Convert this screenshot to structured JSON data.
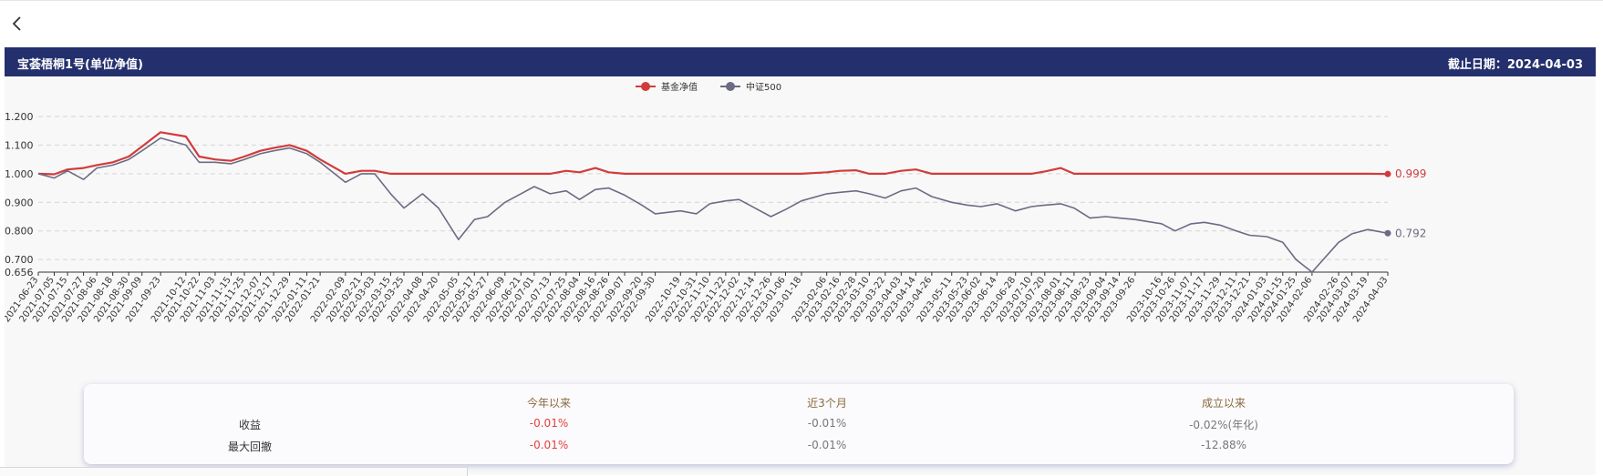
{
  "header": {
    "title": "宝荟梧桐1号(单位净值)",
    "date_label": "截止日期：2024-04-03"
  },
  "colors": {
    "header_bg": "#24306d",
    "fund": "#d23b3b",
    "index": "#6b6b85",
    "negative": "#e2403c",
    "header_text": "#8b6a3d"
  },
  "icons": {
    "back": "chevron-left-icon"
  },
  "chart_data": {
    "type": "line",
    "legend": {
      "position": "top-center",
      "items": [
        "基金净值",
        "中证500"
      ]
    },
    "grid": true,
    "ylim": [
      0.656,
      1.2
    ],
    "y_ticks": [
      "1.200",
      "1.100",
      "1.000",
      "0.900",
      "0.800",
      "0.700",
      "0.656"
    ],
    "x_ticks": [
      "2021-06-23",
      "2021-07-05",
      "2021-07-15",
      "2021-07-27",
      "2021-08-06",
      "2021-08-18",
      "2021-08-30",
      "2021-09-09",
      "2021-09-23",
      "2021-10-12",
      "2021-10-22",
      "2021-11-03",
      "2021-11-15",
      "2021-11-25",
      "2021-12-07",
      "2021-12-17",
      "2021-12-29",
      "2022-01-11",
      "2022-01-21",
      "2022-02-09",
      "2022-02-21",
      "2022-03-03",
      "2022-03-15",
      "2022-03-25",
      "2022-04-08",
      "2022-04-20",
      "2022-05-05",
      "2022-05-17",
      "2022-05-27",
      "2022-06-09",
      "2022-06-21",
      "2022-07-01",
      "2022-07-13",
      "2022-07-25",
      "2022-08-04",
      "2022-08-16",
      "2022-08-26",
      "2022-09-07",
      "2022-09-20",
      "2022-09-30",
      "2022-10-19",
      "2022-10-31",
      "2022-11-10",
      "2022-11-22",
      "2022-12-02",
      "2022-12-14",
      "2022-12-26",
      "2023-01-06",
      "2023-01-18",
      "2023-02-06",
      "2023-02-16",
      "2023-02-28",
      "2023-03-10",
      "2023-03-22",
      "2023-04-03",
      "2023-04-14",
      "2023-04-26",
      "2023-05-11",
      "2023-05-23",
      "2023-06-02",
      "2023-06-14",
      "2023-06-28",
      "2023-07-10",
      "2023-07-20",
      "2023-08-01",
      "2023-08-11",
      "2023-08-23",
      "2023-09-04",
      "2023-09-14",
      "2023-09-26",
      "2023-10-16",
      "2023-10-26",
      "2023-11-07",
      "2023-11-17",
      "2023-11-29",
      "2023-12-11",
      "2023-12-21",
      "2024-01-03",
      "2024-01-15",
      "2024-01-25",
      "2024-02-06",
      "2024-02-26",
      "2024-03-07",
      "2024-03-19",
      "2024-04-03"
    ],
    "series": [
      {
        "name": "基金净值",
        "end_label": "0.999",
        "points": [
          [
            "2021-06-23",
            1.0
          ],
          [
            "2021-07-05",
            0.998
          ],
          [
            "2021-07-15",
            1.015
          ],
          [
            "2021-07-27",
            1.02
          ],
          [
            "2021-08-06",
            1.03
          ],
          [
            "2021-08-18",
            1.04
          ],
          [
            "2021-08-30",
            1.06
          ],
          [
            "2021-09-09",
            1.095
          ],
          [
            "2021-09-23",
            1.145
          ],
          [
            "2021-10-12",
            1.13
          ],
          [
            "2021-10-22",
            1.06
          ],
          [
            "2021-11-03",
            1.05
          ],
          [
            "2021-11-15",
            1.045
          ],
          [
            "2021-11-25",
            1.06
          ],
          [
            "2021-12-07",
            1.08
          ],
          [
            "2021-12-17",
            1.09
          ],
          [
            "2021-12-29",
            1.1
          ],
          [
            "2022-01-11",
            1.08
          ],
          [
            "2022-01-21",
            1.05
          ],
          [
            "2022-02-09",
            1.0
          ],
          [
            "2022-02-21",
            1.01
          ],
          [
            "2022-03-03",
            1.01
          ],
          [
            "2022-03-15",
            1.0
          ],
          [
            "2022-03-25",
            1.0
          ],
          [
            "2022-04-08",
            1.0
          ],
          [
            "2022-04-20",
            1.0
          ],
          [
            "2022-05-05",
            1.0
          ],
          [
            "2022-05-17",
            1.0
          ],
          [
            "2022-05-27",
            1.0
          ],
          [
            "2022-06-09",
            1.0
          ],
          [
            "2022-06-21",
            1.0
          ],
          [
            "2022-07-01",
            1.0
          ],
          [
            "2022-07-13",
            1.0
          ],
          [
            "2022-07-25",
            1.01
          ],
          [
            "2022-08-04",
            1.005
          ],
          [
            "2022-08-16",
            1.02
          ],
          [
            "2022-08-26",
            1.005
          ],
          [
            "2022-09-07",
            1.0
          ],
          [
            "2022-09-20",
            1.0
          ],
          [
            "2022-09-30",
            1.0
          ],
          [
            "2022-10-19",
            1.0
          ],
          [
            "2022-10-31",
            1.0
          ],
          [
            "2022-11-10",
            1.0
          ],
          [
            "2022-11-22",
            1.0
          ],
          [
            "2022-12-02",
            1.0
          ],
          [
            "2022-12-14",
            1.0
          ],
          [
            "2022-12-26",
            1.0
          ],
          [
            "2023-01-06",
            1.0
          ],
          [
            "2023-01-18",
            1.0
          ],
          [
            "2023-02-06",
            1.005
          ],
          [
            "2023-02-16",
            1.01
          ],
          [
            "2023-02-28",
            1.012
          ],
          [
            "2023-03-10",
            1.0
          ],
          [
            "2023-03-22",
            1.0
          ],
          [
            "2023-04-03",
            1.01
          ],
          [
            "2023-04-14",
            1.015
          ],
          [
            "2023-04-26",
            1.0
          ],
          [
            "2023-05-11",
            1.0
          ],
          [
            "2023-05-23",
            1.0
          ],
          [
            "2023-06-02",
            1.0
          ],
          [
            "2023-06-14",
            1.0
          ],
          [
            "2023-06-28",
            1.0
          ],
          [
            "2023-07-10",
            1.0
          ],
          [
            "2023-07-20",
            1.008
          ],
          [
            "2023-08-01",
            1.02
          ],
          [
            "2023-08-11",
            1.0
          ],
          [
            "2023-08-23",
            1.0
          ],
          [
            "2023-09-04",
            1.0
          ],
          [
            "2023-09-14",
            1.0
          ],
          [
            "2023-09-26",
            1.0
          ],
          [
            "2023-10-16",
            1.0
          ],
          [
            "2023-10-26",
            1.0
          ],
          [
            "2023-11-07",
            1.0
          ],
          [
            "2023-11-17",
            1.0
          ],
          [
            "2023-11-29",
            1.0
          ],
          [
            "2023-12-11",
            1.0
          ],
          [
            "2023-12-21",
            1.0
          ],
          [
            "2024-01-03",
            1.0
          ],
          [
            "2024-01-15",
            1.0
          ],
          [
            "2024-01-25",
            1.0
          ],
          [
            "2024-02-06",
            1.0
          ],
          [
            "2024-02-26",
            1.0
          ],
          [
            "2024-03-07",
            1.0
          ],
          [
            "2024-03-19",
            1.0
          ],
          [
            "2024-04-03",
            0.999
          ]
        ]
      },
      {
        "name": "中证500",
        "end_label": "0.792",
        "points": [
          [
            "2021-06-23",
            1.0
          ],
          [
            "2021-07-05",
            0.985
          ],
          [
            "2021-07-15",
            1.01
          ],
          [
            "2021-07-27",
            0.98
          ],
          [
            "2021-08-06",
            1.02
          ],
          [
            "2021-08-18",
            1.03
          ],
          [
            "2021-08-30",
            1.05
          ],
          [
            "2021-09-09",
            1.08
          ],
          [
            "2021-09-23",
            1.125
          ],
          [
            "2021-10-12",
            1.1
          ],
          [
            "2021-10-22",
            1.04
          ],
          [
            "2021-11-03",
            1.04
          ],
          [
            "2021-11-15",
            1.035
          ],
          [
            "2021-11-25",
            1.05
          ],
          [
            "2021-12-07",
            1.07
          ],
          [
            "2021-12-17",
            1.08
          ],
          [
            "2021-12-29",
            1.09
          ],
          [
            "2022-01-11",
            1.07
          ],
          [
            "2022-01-21",
            1.04
          ],
          [
            "2022-02-09",
            0.97
          ],
          [
            "2022-02-21",
            1.0
          ],
          [
            "2022-03-03",
            1.0
          ],
          [
            "2022-03-15",
            0.93
          ],
          [
            "2022-03-25",
            0.88
          ],
          [
            "2022-04-08",
            0.93
          ],
          [
            "2022-04-20",
            0.88
          ],
          [
            "2022-05-05",
            0.77
          ],
          [
            "2022-05-17",
            0.84
          ],
          [
            "2022-05-27",
            0.85
          ],
          [
            "2022-06-09",
            0.9
          ],
          [
            "2022-06-21",
            0.93
          ],
          [
            "2022-07-01",
            0.955
          ],
          [
            "2022-07-13",
            0.93
          ],
          [
            "2022-07-25",
            0.94
          ],
          [
            "2022-08-04",
            0.91
          ],
          [
            "2022-08-16",
            0.945
          ],
          [
            "2022-08-26",
            0.95
          ],
          [
            "2022-09-07",
            0.925
          ],
          [
            "2022-09-20",
            0.89
          ],
          [
            "2022-09-30",
            0.86
          ],
          [
            "2022-10-19",
            0.87
          ],
          [
            "2022-10-31",
            0.86
          ],
          [
            "2022-11-10",
            0.895
          ],
          [
            "2022-11-22",
            0.905
          ],
          [
            "2022-12-02",
            0.91
          ],
          [
            "2022-12-14",
            0.88
          ],
          [
            "2022-12-26",
            0.85
          ],
          [
            "2023-01-06",
            0.875
          ],
          [
            "2023-01-18",
            0.905
          ],
          [
            "2023-02-06",
            0.93
          ],
          [
            "2023-02-16",
            0.935
          ],
          [
            "2023-02-28",
            0.94
          ],
          [
            "2023-03-10",
            0.93
          ],
          [
            "2023-03-22",
            0.915
          ],
          [
            "2023-04-03",
            0.94
          ],
          [
            "2023-04-14",
            0.95
          ],
          [
            "2023-04-26",
            0.92
          ],
          [
            "2023-05-11",
            0.9
          ],
          [
            "2023-05-23",
            0.89
          ],
          [
            "2023-06-02",
            0.885
          ],
          [
            "2023-06-14",
            0.895
          ],
          [
            "2023-06-28",
            0.87
          ],
          [
            "2023-07-10",
            0.885
          ],
          [
            "2023-07-20",
            0.89
          ],
          [
            "2023-08-01",
            0.895
          ],
          [
            "2023-08-11",
            0.88
          ],
          [
            "2023-08-23",
            0.845
          ],
          [
            "2023-09-04",
            0.85
          ],
          [
            "2023-09-14",
            0.845
          ],
          [
            "2023-09-26",
            0.84
          ],
          [
            "2023-10-16",
            0.825
          ],
          [
            "2023-10-26",
            0.8
          ],
          [
            "2023-11-07",
            0.825
          ],
          [
            "2023-11-17",
            0.83
          ],
          [
            "2023-11-29",
            0.82
          ],
          [
            "2023-12-11",
            0.8
          ],
          [
            "2023-12-21",
            0.785
          ],
          [
            "2024-01-03",
            0.78
          ],
          [
            "2024-01-15",
            0.76
          ],
          [
            "2024-01-25",
            0.7
          ],
          [
            "2024-02-06",
            0.656
          ],
          [
            "2024-02-26",
            0.76
          ],
          [
            "2024-03-07",
            0.79
          ],
          [
            "2024-03-19",
            0.805
          ],
          [
            "2024-04-03",
            0.792
          ]
        ]
      }
    ]
  },
  "stats": {
    "columns": [
      "今年以来",
      "近3个月",
      "成立以来"
    ],
    "rows": [
      {
        "label": "收益",
        "values": [
          "-0.01%",
          "-0.01%",
          "-0.02%(年化)"
        ]
      },
      {
        "label": "最大回撤",
        "values": [
          "-0.01%",
          "-0.01%",
          "-12.88%"
        ]
      }
    ]
  }
}
